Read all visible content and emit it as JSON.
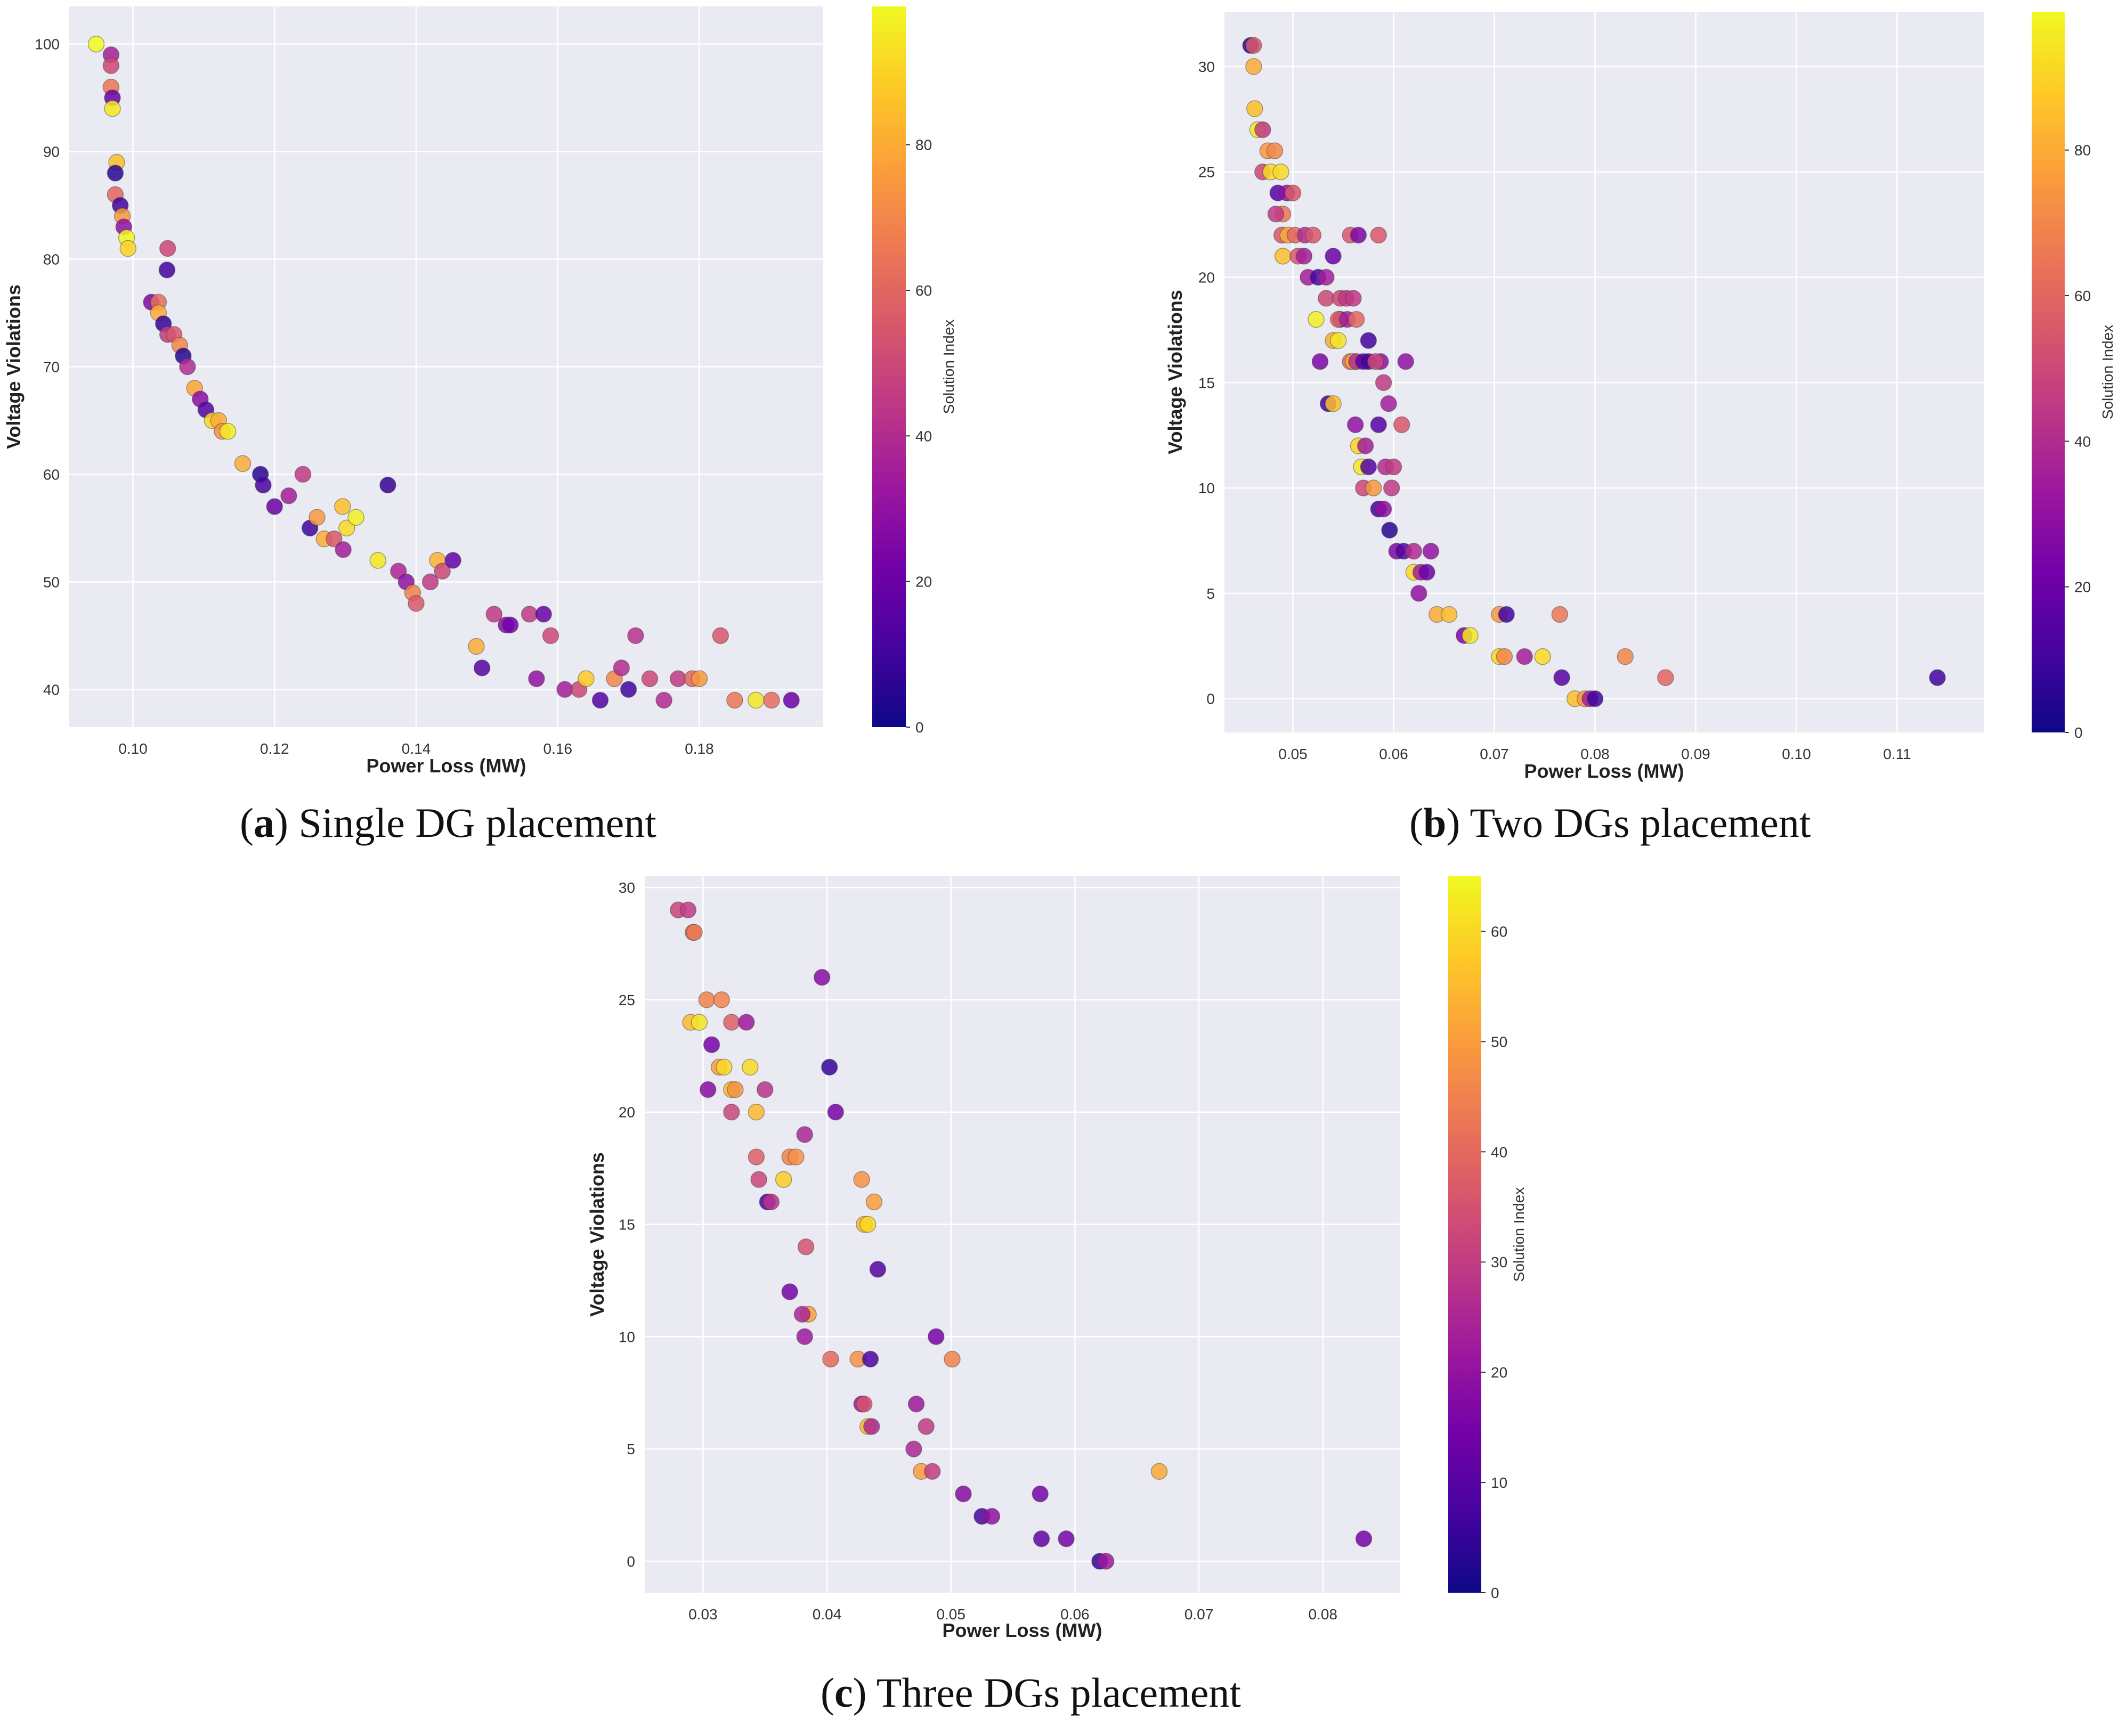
{
  "colormap": {
    "name": "plasma",
    "stops": [
      "#0d0887",
      "#46039f",
      "#7201a8",
      "#9c179e",
      "#bd3786",
      "#d8576b",
      "#ed7953",
      "#fb9f3a",
      "#fdca26",
      "#f0f921"
    ]
  },
  "chart_data": [
    {
      "type": "scatter",
      "xlabel": "Power Loss (MW)",
      "ylabel": "Voltage Violations",
      "colorbar_label": "Solution Index",
      "xlim": [
        0.091,
        0.1975
      ],
      "ylim": [
        36.5,
        103.5
      ],
      "xticks": [
        0.1,
        0.12,
        0.14,
        0.16,
        0.18
      ],
      "xtick_labels": [
        "0.10",
        "0.12",
        "0.14",
        "0.16",
        "0.18"
      ],
      "yticks": [
        40,
        50,
        60,
        70,
        80,
        90,
        100
      ],
      "ytick_labels": [
        "40",
        "50",
        "60",
        "70",
        "80",
        "90",
        "100"
      ],
      "cbar_range": [
        0,
        99
      ],
      "cbar_ticks": [
        0,
        20,
        40,
        60,
        80
      ],
      "cbar_tick_labels": [
        "0",
        "20",
        "40",
        "60",
        "80"
      ],
      "caption": {
        "letter": "a",
        "text": "Single DG placement"
      },
      "points": [
        [
          0.0948,
          100,
          99
        ],
        [
          0.0969,
          99,
          36
        ],
        [
          0.0969,
          98,
          50
        ],
        [
          0.0969,
          96,
          65
        ],
        [
          0.0971,
          95,
          20
        ],
        [
          0.0971,
          94,
          95
        ],
        [
          0.0977,
          89,
          85
        ],
        [
          0.0975,
          88,
          5
        ],
        [
          0.0975,
          86,
          60
        ],
        [
          0.0982,
          85,
          10
        ],
        [
          0.0985,
          84,
          75
        ],
        [
          0.0987,
          83,
          30
        ],
        [
          0.0991,
          82,
          98
        ],
        [
          0.0993,
          81,
          90
        ],
        [
          0.1026,
          76,
          25
        ],
        [
          0.1036,
          76,
          62
        ],
        [
          0.1036,
          75,
          80
        ],
        [
          0.1043,
          74,
          8
        ],
        [
          0.1049,
          73,
          45
        ],
        [
          0.1058,
          73,
          55
        ],
        [
          0.1066,
          72,
          70
        ],
        [
          0.1071,
          71,
          5
        ],
        [
          0.1077,
          70,
          40
        ],
        [
          0.1087,
          68,
          78
        ],
        [
          0.1095,
          67,
          28
        ],
        [
          0.1103,
          66,
          15
        ],
        [
          0.1112,
          65,
          90
        ],
        [
          0.1121,
          65,
          80
        ],
        [
          0.1126,
          64,
          72
        ],
        [
          0.1134,
          64,
          96
        ],
        [
          0.1049,
          81,
          50
        ],
        [
          0.1048,
          79,
          10
        ],
        [
          0.1155,
          61,
          80
        ],
        [
          0.118,
          60,
          5
        ],
        [
          0.1184,
          59,
          12
        ],
        [
          0.124,
          60,
          45
        ],
        [
          0.136,
          59,
          8
        ],
        [
          0.12,
          57,
          20
        ],
        [
          0.122,
          58,
          35
        ],
        [
          0.125,
          55,
          10
        ],
        [
          0.126,
          56,
          75
        ],
        [
          0.127,
          54,
          80
        ],
        [
          0.1284,
          54,
          55
        ],
        [
          0.1296,
          57,
          85
        ],
        [
          0.1302,
          55,
          92
        ],
        [
          0.1297,
          53,
          35
        ],
        [
          0.1315,
          56,
          97
        ],
        [
          0.1346,
          52,
          95
        ],
        [
          0.1375,
          51,
          38
        ],
        [
          0.1386,
          50,
          30
        ],
        [
          0.1395,
          49,
          68
        ],
        [
          0.14,
          48,
          55
        ],
        [
          0.142,
          50,
          45
        ],
        [
          0.143,
          52,
          82
        ],
        [
          0.1437,
          51,
          50
        ],
        [
          0.1452,
          52,
          18
        ],
        [
          0.1485,
          44,
          80
        ],
        [
          0.1493,
          42,
          15
        ],
        [
          0.151,
          47,
          45
        ],
        [
          0.1527,
          46,
          28
        ],
        [
          0.1533,
          46,
          22
        ],
        [
          0.156,
          47,
          45
        ],
        [
          0.157,
          41,
          30
        ],
        [
          0.158,
          47,
          20
        ],
        [
          0.159,
          45,
          50
        ],
        [
          0.161,
          40,
          35
        ],
        [
          0.163,
          40,
          50
        ],
        [
          0.164,
          41,
          88
        ],
        [
          0.166,
          39,
          15
        ],
        [
          0.168,
          41,
          70
        ],
        [
          0.169,
          42,
          40
        ],
        [
          0.17,
          40,
          10
        ],
        [
          0.171,
          45,
          42
        ],
        [
          0.173,
          41,
          50
        ],
        [
          0.175,
          39,
          40
        ],
        [
          0.177,
          41,
          45
        ],
        [
          0.179,
          41,
          60
        ],
        [
          0.18,
          41,
          75
        ],
        [
          0.183,
          45,
          55
        ],
        [
          0.185,
          39,
          65
        ],
        [
          0.188,
          39,
          95
        ],
        [
          0.1902,
          39,
          62
        ],
        [
          0.193,
          39,
          20
        ]
      ]
    },
    {
      "type": "scatter",
      "xlabel": "Power Loss (MW)",
      "ylabel": "Voltage Violations",
      "colorbar_label": "Solution Index",
      "xlim": [
        0.0432,
        0.1186
      ],
      "ylim": [
        -1.6,
        32.6
      ],
      "xticks": [
        0.05,
        0.06,
        0.07,
        0.08,
        0.09,
        0.1,
        0.11
      ],
      "xtick_labels": [
        "0.05",
        "0.06",
        "0.07",
        "0.08",
        "0.09",
        "0.10",
        "0.11"
      ],
      "yticks": [
        0,
        5,
        10,
        15,
        20,
        25,
        30
      ],
      "ytick_labels": [
        "0",
        "5",
        "10",
        "15",
        "20",
        "25",
        "30"
      ],
      "cbar_range": [
        0,
        99
      ],
      "cbar_ticks": [
        0,
        20,
        40,
        60,
        80
      ],
      "cbar_tick_labels": [
        "0",
        "20",
        "40",
        "60",
        "80"
      ],
      "caption": {
        "letter": "b",
        "text": "Two DGs placement"
      },
      "points": [
        [
          0.0458,
          31,
          5
        ],
        [
          0.0461,
          31,
          55
        ],
        [
          0.0461,
          30,
          80
        ],
        [
          0.0462,
          28,
          85
        ],
        [
          0.0465,
          27,
          95
        ],
        [
          0.047,
          27,
          45
        ],
        [
          0.047,
          25,
          50
        ],
        [
          0.0475,
          26,
          75
        ],
        [
          0.0478,
          25,
          92
        ],
        [
          0.0482,
          26,
          70
        ],
        [
          0.0488,
          25,
          92
        ],
        [
          0.0485,
          24,
          15
        ],
        [
          0.049,
          23,
          65
        ],
        [
          0.0494,
          24,
          30
        ],
        [
          0.05,
          24,
          55
        ],
        [
          0.0483,
          23,
          45
        ],
        [
          0.0489,
          22,
          55
        ],
        [
          0.0495,
          22,
          80
        ],
        [
          0.0502,
          22,
          60
        ],
        [
          0.049,
          21,
          85
        ],
        [
          0.0505,
          21,
          55
        ],
        [
          0.0511,
          21,
          35
        ],
        [
          0.0512,
          22,
          40
        ],
        [
          0.052,
          22,
          55
        ],
        [
          0.0515,
          20,
          35
        ],
        [
          0.0525,
          20,
          12
        ],
        [
          0.0533,
          20,
          35
        ],
        [
          0.054,
          21,
          20
        ],
        [
          0.0533,
          19,
          50
        ],
        [
          0.0547,
          18,
          8
        ],
        [
          0.0547,
          19,
          50
        ],
        [
          0.0553,
          19,
          45
        ],
        [
          0.056,
          19,
          45
        ],
        [
          0.0557,
          22,
          55
        ],
        [
          0.0565,
          22,
          25
        ],
        [
          0.0585,
          22,
          55
        ],
        [
          0.0523,
          18,
          97
        ],
        [
          0.0545,
          18,
          60
        ],
        [
          0.0554,
          18,
          35
        ],
        [
          0.0563,
          18,
          60
        ],
        [
          0.054,
          17,
          80
        ],
        [
          0.0545,
          17,
          95
        ],
        [
          0.0575,
          17,
          10
        ],
        [
          0.0527,
          16,
          25
        ],
        [
          0.0557,
          16,
          60
        ],
        [
          0.056,
          16,
          85
        ],
        [
          0.0563,
          16,
          40
        ],
        [
          0.057,
          16,
          15
        ],
        [
          0.0575,
          16,
          10
        ],
        [
          0.0587,
          16,
          30
        ],
        [
          0.0582,
          16,
          50
        ],
        [
          0.0612,
          16,
          30
        ],
        [
          0.059,
          15,
          45
        ],
        [
          0.0535,
          14,
          10
        ],
        [
          0.054,
          14,
          85
        ],
        [
          0.0595,
          14,
          35
        ],
        [
          0.0562,
          13,
          30
        ],
        [
          0.0585,
          13,
          15
        ],
        [
          0.0608,
          13,
          55
        ],
        [
          0.0565,
          12,
          90
        ],
        [
          0.0572,
          12,
          35
        ],
        [
          0.0568,
          11,
          95
        ],
        [
          0.0575,
          11,
          15
        ],
        [
          0.0592,
          11,
          40
        ],
        [
          0.06,
          11,
          45
        ],
        [
          0.057,
          10,
          50
        ],
        [
          0.058,
          10,
          75
        ],
        [
          0.0598,
          10,
          45
        ],
        [
          0.0585,
          9,
          10
        ],
        [
          0.059,
          9,
          30
        ],
        [
          0.0596,
          8,
          5
        ],
        [
          0.0603,
          7,
          25
        ],
        [
          0.061,
          7,
          15
        ],
        [
          0.062,
          7,
          40
        ],
        [
          0.0637,
          7,
          30
        ],
        [
          0.062,
          6,
          92
        ],
        [
          0.0627,
          6,
          35
        ],
        [
          0.0633,
          6,
          20
        ],
        [
          0.0625,
          5,
          30
        ],
        [
          0.0643,
          4,
          80
        ],
        [
          0.0655,
          4,
          85
        ],
        [
          0.0705,
          4,
          75
        ],
        [
          0.0712,
          4,
          10
        ],
        [
          0.0765,
          4,
          65
        ],
        [
          0.067,
          3,
          25
        ],
        [
          0.0676,
          3,
          95
        ],
        [
          0.0705,
          2,
          90
        ],
        [
          0.071,
          2,
          70
        ],
        [
          0.073,
          2,
          35
        ],
        [
          0.0748,
          2,
          92
        ],
        [
          0.083,
          2,
          70
        ],
        [
          0.087,
          1,
          60
        ],
        [
          0.0767,
          1,
          15
        ],
        [
          0.114,
          1,
          10
        ],
        [
          0.078,
          0,
          85
        ],
        [
          0.079,
          0,
          75
        ],
        [
          0.0795,
          0,
          35
        ],
        [
          0.08,
          0,
          10
        ]
      ]
    },
    {
      "type": "scatter",
      "xlabel": "Power Loss (MW)",
      "ylabel": "Voltage Violations",
      "colorbar_label": "Solution Index",
      "xlim": [
        0.0253,
        0.0862
      ],
      "ylim": [
        -1.4,
        30.5
      ],
      "xticks": [
        0.03,
        0.04,
        0.05,
        0.06,
        0.07,
        0.08
      ],
      "xtick_labels": [
        "0.03",
        "0.04",
        "0.05",
        "0.06",
        "0.07",
        "0.08"
      ],
      "yticks": [
        0,
        5,
        10,
        15,
        20,
        25,
        30
      ],
      "ytick_labels": [
        "0",
        "5",
        "10",
        "15",
        "20",
        "25",
        "30"
      ],
      "cbar_range": [
        0,
        65
      ],
      "cbar_ticks": [
        0,
        10,
        20,
        30,
        40,
        50,
        60
      ],
      "cbar_tick_labels": [
        "0",
        "10",
        "20",
        "30",
        "40",
        "50",
        "60"
      ],
      "caption": {
        "letter": "c",
        "text": "Three DGs placement"
      },
      "points": [
        [
          0.028,
          29,
          32
        ],
        [
          0.0288,
          29,
          30
        ],
        [
          0.0292,
          28,
          45
        ],
        [
          0.0293,
          28,
          42
        ],
        [
          0.029,
          24,
          55
        ],
        [
          0.0297,
          24,
          62
        ],
        [
          0.0303,
          25,
          45
        ],
        [
          0.0315,
          25,
          45
        ],
        [
          0.0323,
          24,
          38
        ],
        [
          0.0335,
          24,
          22
        ],
        [
          0.0307,
          23,
          15
        ],
        [
          0.0313,
          22,
          50
        ],
        [
          0.0317,
          22,
          60
        ],
        [
          0.0338,
          22,
          60
        ],
        [
          0.0304,
          21,
          18
        ],
        [
          0.0323,
          21,
          55
        ],
        [
          0.0326,
          21,
          48
        ],
        [
          0.035,
          21,
          28
        ],
        [
          0.0323,
          20,
          32
        ],
        [
          0.0343,
          20,
          55
        ],
        [
          0.0396,
          26,
          18
        ],
        [
          0.0402,
          22,
          5
        ],
        [
          0.0407,
          20,
          15
        ],
        [
          0.0343,
          18,
          38
        ],
        [
          0.0352,
          16,
          8
        ],
        [
          0.0355,
          16,
          28
        ],
        [
          0.037,
          18,
          45
        ],
        [
          0.0375,
          18,
          48
        ],
        [
          0.0382,
          19,
          25
        ],
        [
          0.0345,
          17,
          32
        ],
        [
          0.0365,
          17,
          58
        ],
        [
          0.0428,
          17,
          48
        ],
        [
          0.0438,
          16,
          50
        ],
        [
          0.043,
          15,
          55
        ],
        [
          0.0433,
          15,
          60
        ],
        [
          0.0383,
          14,
          35
        ],
        [
          0.0441,
          13,
          10
        ],
        [
          0.037,
          12,
          15
        ],
        [
          0.0385,
          11,
          50
        ],
        [
          0.038,
          11,
          25
        ],
        [
          0.0382,
          10,
          22
        ],
        [
          0.0403,
          9,
          40
        ],
        [
          0.0425,
          9,
          48
        ],
        [
          0.0435,
          9,
          8
        ],
        [
          0.0488,
          10,
          15
        ],
        [
          0.0501,
          9,
          45
        ],
        [
          0.0428,
          7,
          22
        ],
        [
          0.043,
          7,
          35
        ],
        [
          0.0433,
          6,
          55
        ],
        [
          0.0436,
          6,
          25
        ],
        [
          0.0472,
          7,
          22
        ],
        [
          0.048,
          6,
          30
        ],
        [
          0.047,
          5,
          25
        ],
        [
          0.0476,
          4,
          50
        ],
        [
          0.0485,
          4,
          30
        ],
        [
          0.0668,
          4,
          52
        ],
        [
          0.051,
          3,
          18
        ],
        [
          0.0572,
          3,
          15
        ],
        [
          0.0525,
          2,
          8
        ],
        [
          0.0533,
          2,
          20
        ],
        [
          0.0573,
          1,
          12
        ],
        [
          0.0593,
          1,
          15
        ],
        [
          0.0833,
          1,
          15
        ],
        [
          0.062,
          0,
          5
        ],
        [
          0.0625,
          0,
          22
        ]
      ]
    }
  ]
}
